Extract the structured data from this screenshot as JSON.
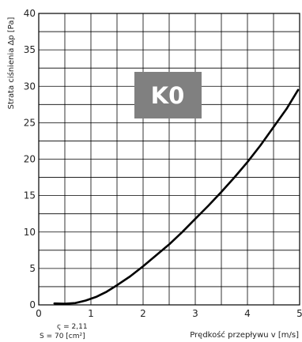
{
  "chart_data": {
    "type": "line",
    "title": "",
    "xlabel": "Prędkość przepływu v [m/s]",
    "ylabel": "Strata ciśnienia Δp [Pa]",
    "xlim": [
      0,
      5
    ],
    "ylim": [
      0,
      40
    ],
    "x_ticks": [
      "0",
      "1",
      "2",
      "3",
      "4",
      "5"
    ],
    "y_ticks": [
      "0",
      "5",
      "10",
      "15",
      "20",
      "25",
      "30",
      "35",
      "40"
    ],
    "grid": true,
    "x_minor_step": 0.5,
    "y_minor_step": 2.5,
    "series": [
      {
        "x": [
          0.3,
          0.5,
          0.7,
          0.9,
          1.1,
          1.3,
          1.5,
          1.75,
          2.0,
          2.25,
          2.5,
          2.75,
          3.0,
          3.25,
          3.5,
          3.75,
          4.0,
          4.25,
          4.5,
          4.75,
          4.97
        ],
        "y": [
          0.2,
          0.15,
          0.25,
          0.6,
          1.1,
          1.8,
          2.7,
          3.9,
          5.3,
          6.8,
          8.3,
          10.0,
          11.8,
          13.6,
          15.5,
          17.5,
          19.6,
          21.9,
          24.4,
          26.9,
          29.5
        ]
      }
    ],
    "annotations": {
      "zeta": "ς = 2,11",
      "area": "S = 70 [cm²]"
    },
    "badge": {
      "label": "K0",
      "color": "#808080"
    },
    "line_color": "#000000",
    "grid_color": "#000000"
  }
}
